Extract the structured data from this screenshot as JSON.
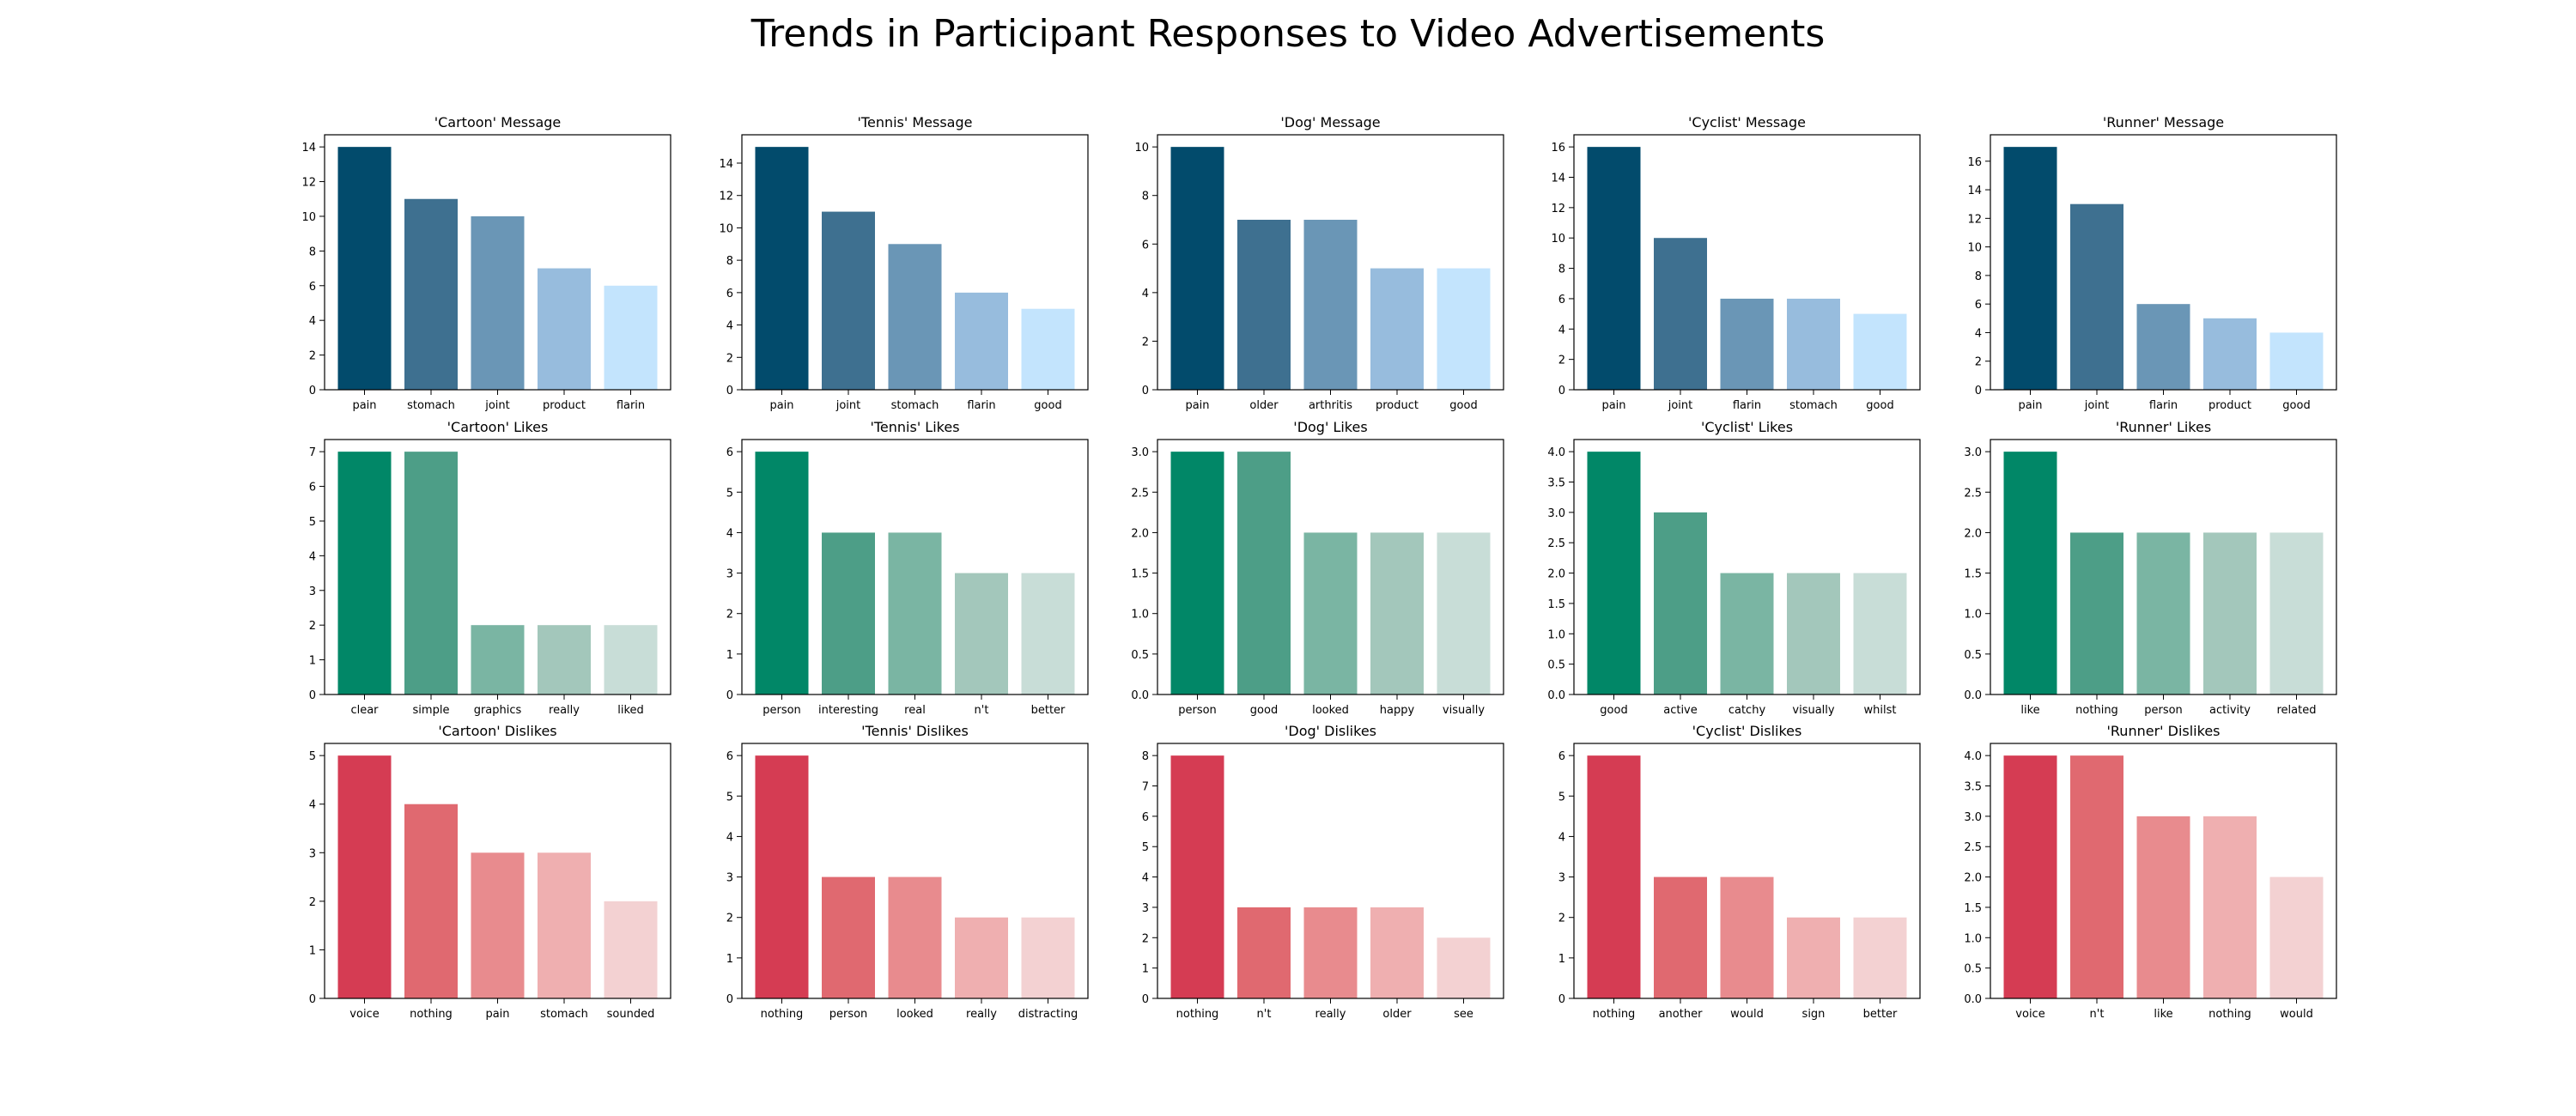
{
  "title": "Trends in Participant Responses to Video Advertisements",
  "palettes": {
    "message": [
      "#024b6c",
      "#3e7090",
      "#6a96b6",
      "#97bcdd",
      "#c3e4fd"
    ],
    "likes": [
      "#018767",
      "#4d9e87",
      "#7ab5a3",
      "#a3c7bb",
      "#c8ddd7"
    ],
    "dislikes": [
      "#d53c53",
      "#e06970",
      "#e88b8e",
      "#efafb0",
      "#f3d1d2"
    ]
  },
  "chart_data": [
    {
      "type": "bar",
      "title": "'Cartoon' Message",
      "palette": "message",
      "categories": [
        "pain",
        "stomach",
        "joint",
        "product",
        "flarin"
      ],
      "values": [
        14,
        11,
        10,
        7,
        6
      ],
      "ylim": [
        0,
        14.7
      ],
      "yticks": [
        0,
        2,
        4,
        6,
        8,
        10,
        12,
        14
      ],
      "grid": false
    },
    {
      "type": "bar",
      "title": "'Tennis' Message",
      "palette": "message",
      "categories": [
        "pain",
        "joint",
        "stomach",
        "flarin",
        "good"
      ],
      "values": [
        15,
        11,
        9,
        6,
        5
      ],
      "ylim": [
        0,
        15.75
      ],
      "yticks": [
        0,
        2,
        4,
        6,
        8,
        10,
        12,
        14
      ],
      "grid": false
    },
    {
      "type": "bar",
      "title": "'Dog' Message",
      "palette": "message",
      "categories": [
        "pain",
        "older",
        "arthritis",
        "product",
        "good"
      ],
      "values": [
        10,
        7,
        7,
        5,
        5
      ],
      "ylim": [
        0,
        10.5
      ],
      "yticks": [
        0,
        2,
        4,
        6,
        8,
        10
      ],
      "grid": false
    },
    {
      "type": "bar",
      "title": "'Cyclist' Message",
      "palette": "message",
      "categories": [
        "pain",
        "joint",
        "flarin",
        "stomach",
        "good"
      ],
      "values": [
        16,
        10,
        6,
        6,
        5
      ],
      "ylim": [
        0,
        16.8
      ],
      "yticks": [
        0,
        2,
        4,
        6,
        8,
        10,
        12,
        14,
        16
      ],
      "grid": false
    },
    {
      "type": "bar",
      "title": "'Runner' Message",
      "palette": "message",
      "categories": [
        "pain",
        "joint",
        "flarin",
        "product",
        "good"
      ],
      "values": [
        17,
        13,
        6,
        5,
        4
      ],
      "ylim": [
        0,
        17.85
      ],
      "yticks": [
        0,
        2,
        4,
        6,
        8,
        10,
        12,
        14,
        16
      ],
      "grid": false
    },
    {
      "type": "bar",
      "title": "'Cartoon' Likes",
      "palette": "likes",
      "categories": [
        "clear",
        "simple",
        "graphics",
        "really",
        "liked"
      ],
      "values": [
        7,
        7,
        2,
        2,
        2
      ],
      "ylim": [
        0,
        7.35
      ],
      "yticks": [
        0,
        1,
        2,
        3,
        4,
        5,
        6,
        7
      ],
      "grid": false
    },
    {
      "type": "bar",
      "title": "'Tennis' Likes",
      "palette": "likes",
      "categories": [
        "person",
        "interesting",
        "real",
        "n't",
        "better"
      ],
      "values": [
        6,
        4,
        4,
        3,
        3
      ],
      "ylim": [
        0,
        6.3
      ],
      "yticks": [
        0,
        1,
        2,
        3,
        4,
        5,
        6
      ],
      "grid": false
    },
    {
      "type": "bar",
      "title": "'Dog' Likes",
      "palette": "likes",
      "categories": [
        "person",
        "good",
        "looked",
        "happy",
        "visually"
      ],
      "values": [
        3,
        3,
        2,
        2,
        2
      ],
      "ylim": [
        0,
        3.15
      ],
      "yticks": [
        "0.0",
        "0.5",
        "1.0",
        "1.5",
        "2.0",
        "2.5",
        "3.0"
      ],
      "grid": false
    },
    {
      "type": "bar",
      "title": "'Cyclist' Likes",
      "palette": "likes",
      "categories": [
        "good",
        "active",
        "catchy",
        "visually",
        "whilst"
      ],
      "values": [
        4,
        3,
        2,
        2,
        2
      ],
      "ylim": [
        0,
        4.2
      ],
      "yticks": [
        "0.0",
        "0.5",
        "1.0",
        "1.5",
        "2.0",
        "2.5",
        "3.0",
        "3.5",
        "4.0"
      ],
      "grid": false
    },
    {
      "type": "bar",
      "title": "'Runner' Likes",
      "palette": "likes",
      "categories": [
        "like",
        "nothing",
        "person",
        "activity",
        "related"
      ],
      "values": [
        3,
        2,
        2,
        2,
        2
      ],
      "ylim": [
        0,
        3.15
      ],
      "yticks": [
        "0.0",
        "0.5",
        "1.0",
        "1.5",
        "2.0",
        "2.5",
        "3.0"
      ],
      "grid": false
    },
    {
      "type": "bar",
      "title": "'Cartoon' Dislikes",
      "palette": "dislikes",
      "categories": [
        "voice",
        "nothing",
        "pain",
        "stomach",
        "sounded"
      ],
      "values": [
        5,
        4,
        3,
        3,
        2
      ],
      "ylim": [
        0,
        5.25
      ],
      "yticks": [
        0,
        1,
        2,
        3,
        4,
        5
      ],
      "grid": false
    },
    {
      "type": "bar",
      "title": "'Tennis' Dislikes",
      "palette": "dislikes",
      "categories": [
        "nothing",
        "person",
        "looked",
        "really",
        "distracting"
      ],
      "values": [
        6,
        3,
        3,
        2,
        2
      ],
      "ylim": [
        0,
        6.3
      ],
      "yticks": [
        0,
        1,
        2,
        3,
        4,
        5,
        6
      ],
      "grid": false
    },
    {
      "type": "bar",
      "title": "'Dog' Dislikes",
      "palette": "dislikes",
      "categories": [
        "nothing",
        "n't",
        "really",
        "older",
        "see"
      ],
      "values": [
        8,
        3,
        3,
        3,
        2
      ],
      "ylim": [
        0,
        8.4
      ],
      "yticks": [
        0,
        1,
        2,
        3,
        4,
        5,
        6,
        7,
        8
      ],
      "grid": false
    },
    {
      "type": "bar",
      "title": "'Cyclist' Dislikes",
      "palette": "dislikes",
      "categories": [
        "nothing",
        "another",
        "would",
        "sign",
        "better"
      ],
      "values": [
        6,
        3,
        3,
        2,
        2
      ],
      "ylim": [
        0,
        6.3
      ],
      "yticks": [
        0,
        1,
        2,
        3,
        4,
        5,
        6
      ],
      "grid": false
    },
    {
      "type": "bar",
      "title": "'Runner' Dislikes",
      "palette": "dislikes",
      "categories": [
        "voice",
        "n't",
        "like",
        "nothing",
        "would"
      ],
      "values": [
        4,
        4,
        3,
        3,
        2
      ],
      "ylim": [
        0,
        4.2
      ],
      "yticks": [
        "0.0",
        "0.5",
        "1.0",
        "1.5",
        "2.0",
        "2.5",
        "3.0",
        "3.5",
        "4.0"
      ],
      "grid": false
    }
  ]
}
